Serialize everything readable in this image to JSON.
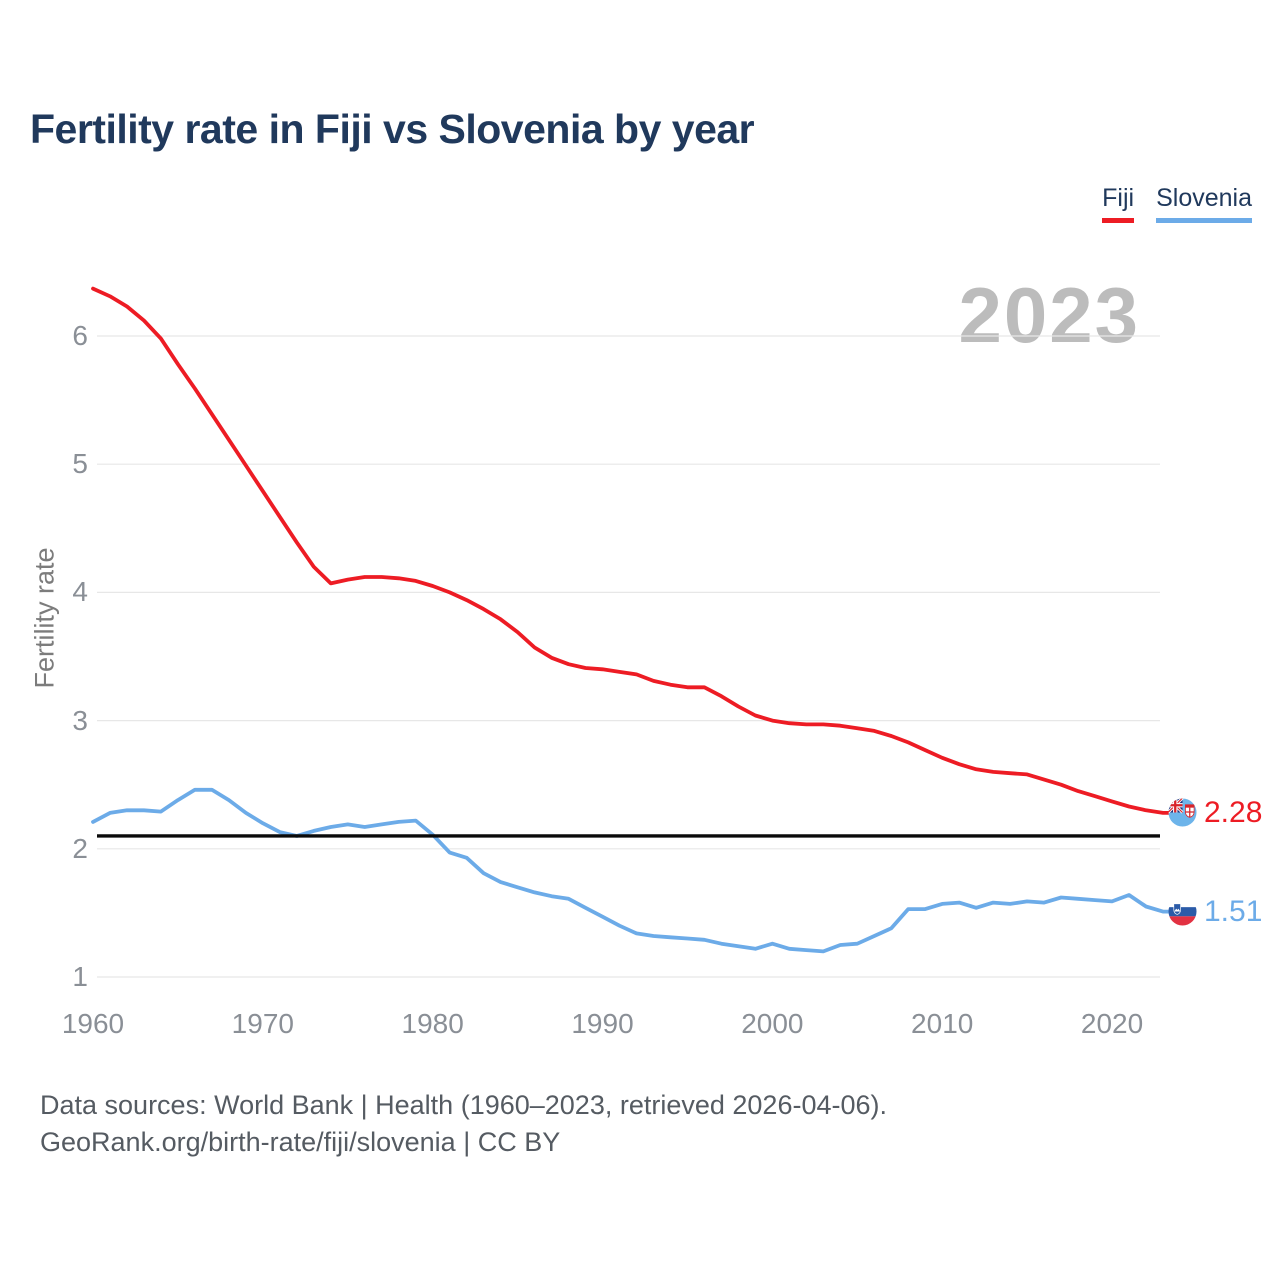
{
  "title": "Fertility rate in Fiji vs Slovenia by year",
  "watermark": "2023",
  "legend": [
    {
      "label": "Fiji",
      "color": "#ed1c24"
    },
    {
      "label": "Slovenia",
      "color": "#6cabe8"
    }
  ],
  "icons": {
    "fiji_flag": "fiji-flag-icon",
    "slovenia_flag": "slovenia-flag-icon"
  },
  "footer": {
    "line1": "Data sources: World Bank | Health (1960–2023, retrieved 2026-04-06).",
    "line2": "GeoRank.org/birth-rate/fiji/slovenia | CC BY"
  },
  "chart_data": {
    "type": "line",
    "title": "Fertility rate in Fiji vs Slovenia by year",
    "xlabel": "",
    "ylabel": "Fertility rate",
    "xlim": [
      1960,
      2023
    ],
    "ylim": [
      1,
      6.5
    ],
    "xticks": [
      1960,
      1970,
      1980,
      1990,
      2000,
      2010,
      2020
    ],
    "yticks": [
      1,
      2,
      3,
      4,
      5,
      6
    ],
    "grid": "horizontal",
    "legend_position": "top-right",
    "reference_line": {
      "value": 2.1,
      "color": "#0a0a0a"
    },
    "x": [
      1960,
      1961,
      1962,
      1963,
      1964,
      1965,
      1966,
      1967,
      1968,
      1969,
      1970,
      1971,
      1972,
      1973,
      1974,
      1975,
      1976,
      1977,
      1978,
      1979,
      1980,
      1981,
      1982,
      1983,
      1984,
      1985,
      1986,
      1987,
      1988,
      1989,
      1990,
      1991,
      1992,
      1993,
      1994,
      1995,
      1996,
      1997,
      1998,
      1999,
      2000,
      2001,
      2002,
      2003,
      2004,
      2005,
      2006,
      2007,
      2008,
      2009,
      2010,
      2011,
      2012,
      2013,
      2014,
      2015,
      2016,
      2017,
      2018,
      2019,
      2020,
      2021,
      2022,
      2023
    ],
    "series": [
      {
        "name": "Fiji",
        "color": "#ed1c24",
        "values": [
          6.37,
          6.31,
          6.23,
          6.12,
          5.98,
          5.78,
          5.59,
          5.39,
          5.19,
          4.99,
          4.79,
          4.59,
          4.39,
          4.2,
          4.07,
          4.1,
          4.12,
          4.12,
          4.11,
          4.09,
          4.05,
          4.0,
          3.94,
          3.87,
          3.79,
          3.69,
          3.57,
          3.49,
          3.44,
          3.41,
          3.4,
          3.38,
          3.36,
          3.31,
          3.28,
          3.26,
          3.26,
          3.19,
          3.11,
          3.04,
          3.0,
          2.98,
          2.97,
          2.97,
          2.96,
          2.94,
          2.92,
          2.88,
          2.83,
          2.77,
          2.71,
          2.66,
          2.62,
          2.6,
          2.59,
          2.58,
          2.54,
          2.5,
          2.45,
          2.41,
          2.37,
          2.33,
          2.3,
          2.28
        ]
      },
      {
        "name": "Slovenia",
        "color": "#6cabe8",
        "values": [
          2.21,
          2.28,
          2.3,
          2.3,
          2.29,
          2.38,
          2.46,
          2.46,
          2.38,
          2.28,
          2.2,
          2.13,
          2.1,
          2.14,
          2.17,
          2.19,
          2.17,
          2.19,
          2.21,
          2.22,
          2.11,
          1.97,
          1.93,
          1.81,
          1.74,
          1.7,
          1.66,
          1.63,
          1.61,
          1.54,
          1.47,
          1.4,
          1.34,
          1.32,
          1.31,
          1.3,
          1.29,
          1.26,
          1.24,
          1.22,
          1.26,
          1.22,
          1.21,
          1.2,
          1.25,
          1.26,
          1.32,
          1.38,
          1.53,
          1.53,
          1.57,
          1.58,
          1.54,
          1.58,
          1.57,
          1.59,
          1.58,
          1.62,
          1.61,
          1.6,
          1.59,
          1.64,
          1.55,
          1.51
        ]
      }
    ],
    "end_labels": [
      {
        "series": "Fiji",
        "value": "2.28",
        "flag": "fiji-flag-icon"
      },
      {
        "series": "Slovenia",
        "value": "1.51",
        "flag": "slovenia-flag-icon"
      }
    ]
  }
}
